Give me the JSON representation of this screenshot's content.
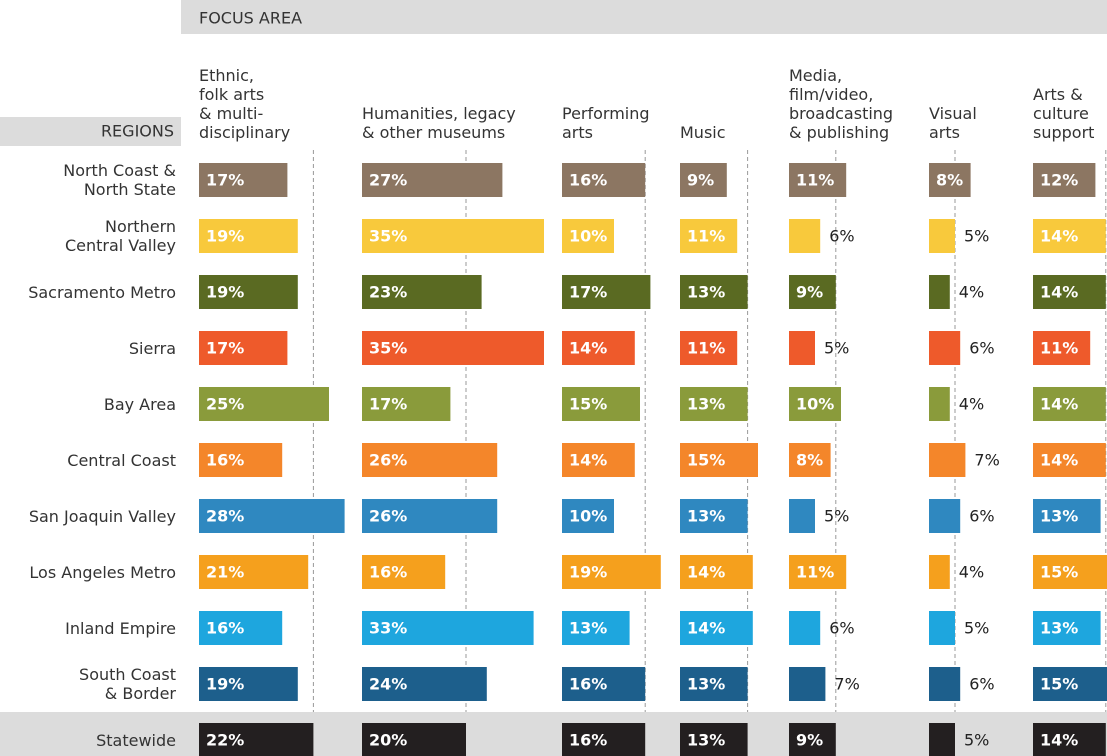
{
  "chart_data": {
    "type": "bar-matrix",
    "header": "FOCUS AREA",
    "row_header": "REGIONS",
    "categories": [
      "North Coast &\nNorth State",
      "Northern\nCentral Valley",
      "Sacramento Metro",
      "Sierra",
      "Bay Area",
      "Central Coast",
      "San Joaquin Valley",
      "Los Angeles Metro",
      "Inland Empire",
      "South Coast\n& Border",
      "Statewide"
    ],
    "colors": [
      "#8c7662",
      "#f8c93c",
      "#5a6a22",
      "#ee5a2b",
      "#8a9b3b",
      "#f4862a",
      "#2f88c0",
      "#f5a01d",
      "#1ea6de",
      "#1d5f8c",
      "#231f20"
    ],
    "series": [
      {
        "name": "Ethnic,\nfolk arts\n& multi-\ndisciplinary",
        "values": [
          17,
          19,
          19,
          17,
          25,
          16,
          28,
          21,
          16,
          19,
          22
        ],
        "value_labels": [
          "17%",
          "19%",
          "19%",
          "17%",
          "25%",
          "16%",
          "28%",
          "21%",
          "16%",
          "19%",
          "22%"
        ]
      },
      {
        "name": "Humanities, legacy\n& other museums",
        "values": [
          27,
          35,
          23,
          35,
          17,
          26,
          26,
          16,
          33,
          24,
          20
        ],
        "value_labels": [
          "27%",
          "35%",
          "23%",
          "35%",
          "17%",
          "26%",
          "26%",
          "16%",
          "33%",
          "24%",
          "20%"
        ]
      },
      {
        "name": "Performing\narts",
        "values": [
          16,
          10,
          17,
          14,
          15,
          14,
          10,
          19,
          13,
          16,
          16
        ],
        "value_labels": [
          "16%",
          "10%",
          "17%",
          "14%",
          "15%",
          "14%",
          "10%",
          "19%",
          "13%",
          "16%",
          "16%"
        ]
      },
      {
        "name": "Music",
        "values": [
          9,
          11,
          13,
          11,
          13,
          15,
          13,
          14,
          14,
          13,
          13
        ],
        "value_labels": [
          "9%",
          "11%",
          "13%",
          "11%",
          "13%",
          "15%",
          "13%",
          "14%",
          "14%",
          "13%",
          "13%"
        ]
      },
      {
        "name": "Media,\nfilm/video,\nbroadcasting\n& publishing",
        "values": [
          11,
          6,
          9,
          5,
          10,
          8,
          5,
          11,
          6,
          7,
          9
        ],
        "value_labels": [
          "11%",
          "6%",
          "9%",
          "5%",
          "10%",
          "8%",
          "5%",
          "11%",
          "6%",
          "7%",
          "9%"
        ]
      },
      {
        "name": "Visual\narts",
        "values": [
          8,
          5,
          4,
          6,
          4,
          7,
          6,
          4,
          5,
          6,
          5
        ],
        "value_labels": [
          "8%",
          "5%",
          "4%",
          "6%",
          "4%",
          "7%",
          "6%",
          "4%",
          "5%",
          "6%",
          "5%"
        ]
      },
      {
        "name": "Arts &\nculture\nsupport",
        "values": [
          12,
          14,
          14,
          11,
          14,
          14,
          13,
          15,
          13,
          15,
          14
        ],
        "value_labels": [
          "12%",
          "14%",
          "14%",
          "11%",
          "14%",
          "14%",
          "13%",
          "15%",
          "13%",
          "15%",
          "14%"
        ]
      }
    ]
  }
}
